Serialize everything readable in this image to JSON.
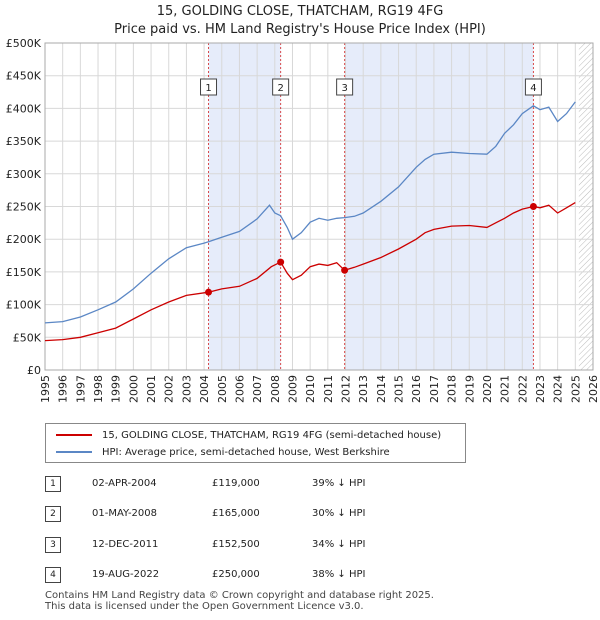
{
  "title_line1": "15, GOLDING CLOSE, THATCHAM, RG19 4FG",
  "title_line2": "Price paid vs. HM Land Registry's House Price Index (HPI)",
  "chart_data": {
    "type": "line",
    "x_range": [
      1995,
      2026
    ],
    "ylim": [
      0,
      500000
    ],
    "y_ticks": [
      {
        "value": 0,
        "label": "£0"
      },
      {
        "value": 50000,
        "label": "£50K"
      },
      {
        "value": 100000,
        "label": "£100K"
      },
      {
        "value": 150000,
        "label": "£150K"
      },
      {
        "value": 200000,
        "label": "£200K"
      },
      {
        "value": 250000,
        "label": "£250K"
      },
      {
        "value": 300000,
        "label": "£300K"
      },
      {
        "value": 350000,
        "label": "£350K"
      },
      {
        "value": 400000,
        "label": "£400K"
      },
      {
        "value": 450000,
        "label": "£450K"
      },
      {
        "value": 500000,
        "label": "£500K"
      }
    ],
    "x_ticks": [
      "1995",
      "1996",
      "1997",
      "1998",
      "1999",
      "2000",
      "2001",
      "2002",
      "2003",
      "2004",
      "2005",
      "2006",
      "2007",
      "2008",
      "2009",
      "2010",
      "2011",
      "2012",
      "2013",
      "2014",
      "2015",
      "2016",
      "2017",
      "2018",
      "2019",
      "2020",
      "2021",
      "2022",
      "2023",
      "2024",
      "2025",
      "2026"
    ],
    "grid": true,
    "shaded_spans": [
      [
        2004.25,
        2008.33
      ],
      [
        2011.95,
        2022.63
      ]
    ],
    "hatched_from": 2025.2,
    "series": [
      {
        "name": "15, GOLDING CLOSE, THATCHAM, RG19 4FG (semi-detached house)",
        "color": "#cc0000",
        "points": [
          [
            1995.0,
            45000
          ],
          [
            1996.0,
            46500
          ],
          [
            1997.0,
            50000
          ],
          [
            1998.0,
            57000
          ],
          [
            1999.0,
            64000
          ],
          [
            2000.0,
            78000
          ],
          [
            2001.0,
            92000
          ],
          [
            2002.0,
            104000
          ],
          [
            2003.0,
            114000
          ],
          [
            2004.25,
            119000
          ],
          [
            2005.0,
            124000
          ],
          [
            2006.0,
            128000
          ],
          [
            2007.0,
            140000
          ],
          [
            2007.8,
            158000
          ],
          [
            2008.33,
            165000
          ],
          [
            2008.7,
            148000
          ],
          [
            2009.0,
            138000
          ],
          [
            2009.5,
            145000
          ],
          [
            2010.0,
            158000
          ],
          [
            2010.5,
            162000
          ],
          [
            2011.0,
            160000
          ],
          [
            2011.5,
            164000
          ],
          [
            2011.95,
            152500
          ],
          [
            2012.5,
            157000
          ],
          [
            2013.0,
            162000
          ],
          [
            2014.0,
            172000
          ],
          [
            2015.0,
            185000
          ],
          [
            2016.0,
            200000
          ],
          [
            2016.5,
            210000
          ],
          [
            2017.0,
            215000
          ],
          [
            2018.0,
            220000
          ],
          [
            2019.0,
            221000
          ],
          [
            2020.0,
            218000
          ],
          [
            2020.5,
            225000
          ],
          [
            2021.0,
            232000
          ],
          [
            2021.5,
            240000
          ],
          [
            2022.0,
            246000
          ],
          [
            2022.63,
            250000
          ],
          [
            2023.0,
            248000
          ],
          [
            2023.5,
            252000
          ],
          [
            2024.0,
            240000
          ],
          [
            2024.5,
            248000
          ],
          [
            2025.0,
            256000
          ]
        ]
      },
      {
        "name": "HPI: Average price, semi-detached house, West Berkshire",
        "color": "#5b87c5",
        "points": [
          [
            1995.0,
            72000
          ],
          [
            1996.0,
            74000
          ],
          [
            1997.0,
            81000
          ],
          [
            1998.0,
            92000
          ],
          [
            1999.0,
            104000
          ],
          [
            2000.0,
            124000
          ],
          [
            2001.0,
            148000
          ],
          [
            2002.0,
            170000
          ],
          [
            2003.0,
            187000
          ],
          [
            2004.0,
            194000
          ],
          [
            2004.25,
            196000
          ],
          [
            2005.0,
            203000
          ],
          [
            2006.0,
            212000
          ],
          [
            2007.0,
            231000
          ],
          [
            2007.7,
            252000
          ],
          [
            2008.0,
            240000
          ],
          [
            2008.33,
            236000
          ],
          [
            2008.7,
            218000
          ],
          [
            2009.0,
            200000
          ],
          [
            2009.5,
            210000
          ],
          [
            2010.0,
            226000
          ],
          [
            2010.5,
            232000
          ],
          [
            2011.0,
            229000
          ],
          [
            2011.5,
            232000
          ],
          [
            2011.95,
            233000
          ],
          [
            2012.5,
            235000
          ],
          [
            2013.0,
            240000
          ],
          [
            2014.0,
            258000
          ],
          [
            2015.0,
            280000
          ],
          [
            2016.0,
            310000
          ],
          [
            2016.5,
            322000
          ],
          [
            2017.0,
            330000
          ],
          [
            2018.0,
            333000
          ],
          [
            2019.0,
            331000
          ],
          [
            2020.0,
            330000
          ],
          [
            2020.5,
            342000
          ],
          [
            2021.0,
            362000
          ],
          [
            2021.5,
            375000
          ],
          [
            2022.0,
            392000
          ],
          [
            2022.63,
            404000
          ],
          [
            2023.0,
            398000
          ],
          [
            2023.5,
            402000
          ],
          [
            2024.0,
            380000
          ],
          [
            2024.5,
            392000
          ],
          [
            2025.0,
            410000
          ]
        ]
      }
    ],
    "markers": [
      {
        "label": "1",
        "x": 2004.25,
        "y": 119000
      },
      {
        "label": "2",
        "x": 2008.33,
        "y": 165000
      },
      {
        "label": "3",
        "x": 2011.95,
        "y": 152500
      },
      {
        "label": "4",
        "x": 2022.63,
        "y": 250000
      }
    ]
  },
  "legend": {
    "property_label": "15, GOLDING CLOSE, THATCHAM, RG19 4FG (semi-detached house)",
    "hpi_label": "HPI: Average price, semi-detached house, West Berkshire"
  },
  "transactions": [
    {
      "num": "1",
      "date": "02-APR-2004",
      "price": "£119,000",
      "hpi": "39% ↓ HPI"
    },
    {
      "num": "2",
      "date": "01-MAY-2008",
      "price": "£165,000",
      "hpi": "30% ↓ HPI"
    },
    {
      "num": "3",
      "date": "12-DEC-2011",
      "price": "£152,500",
      "hpi": "34% ↓ HPI"
    },
    {
      "num": "4",
      "date": "19-AUG-2022",
      "price": "£250,000",
      "hpi": "38% ↓ HPI"
    }
  ],
  "footer_line1": "Contains HM Land Registry data © Crown copyright and database right 2025.",
  "footer_line2": "This data is licensed under the Open Government Licence v3.0.",
  "colors": {
    "property": "#cc0000",
    "hpi": "#5b87c5",
    "shade": "#e6ecfa",
    "grid": "#d8d8d8"
  }
}
